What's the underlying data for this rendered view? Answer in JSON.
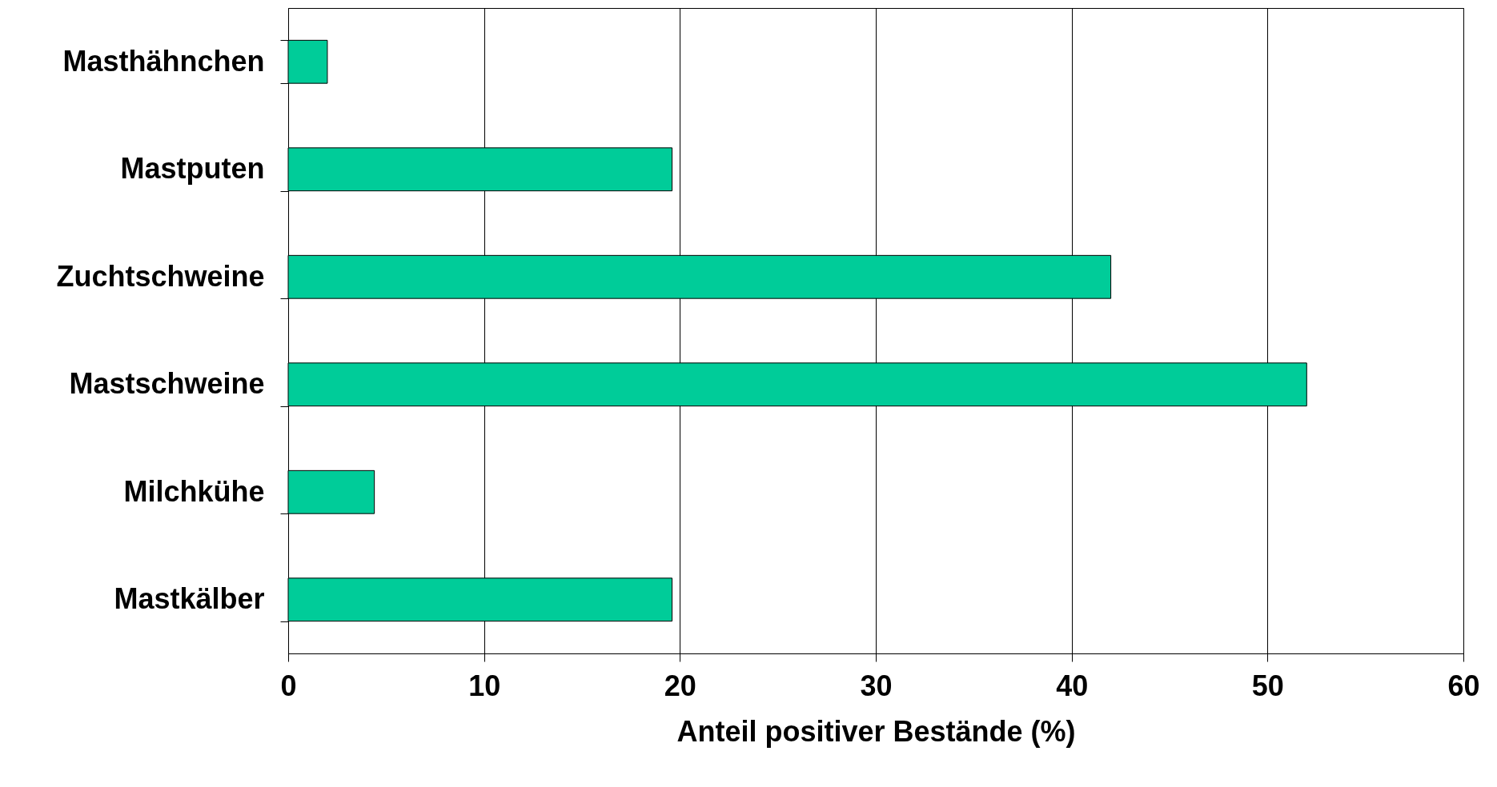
{
  "chart_data": {
    "type": "bar",
    "orientation": "horizontal",
    "xlabel": "Anteil positiver Bestände (%)",
    "categories": [
      "Masthähnchen",
      "Mastputen",
      "Zuchtschweine",
      "Mastschweine",
      "Milchkühe",
      "Mastkälber"
    ],
    "values": [
      2,
      19.6,
      42,
      52,
      4.4,
      19.6
    ],
    "color": "#00cc99",
    "xlim": [
      0,
      60
    ],
    "xticks": [
      0,
      10,
      20,
      30,
      40,
      50,
      60
    ],
    "grid": "x"
  }
}
